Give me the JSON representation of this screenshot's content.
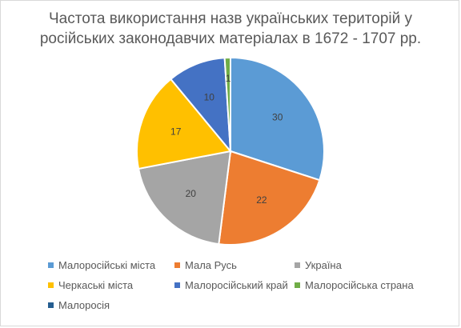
{
  "chart_data": {
    "type": "pie",
    "title_lines": [
      "Частота використання назв українських територій у",
      "російських законодавчих матеріалах в 1672 - 1707 рр."
    ],
    "slices": [
      {
        "label": "Малоросійські міста",
        "value": 30,
        "color": "#5b9bd5"
      },
      {
        "label": "Мала Русь",
        "value": 22,
        "color": "#ed7d31"
      },
      {
        "label": "Україна",
        "value": 20,
        "color": "#a5a5a5"
      },
      {
        "label": "Черкаські міста",
        "value": 17,
        "color": "#ffc000"
      },
      {
        "label": "Малоросійський край",
        "value": 10,
        "color": "#4472c4"
      },
      {
        "label": "Малоросійська страна",
        "value": 1,
        "color": "#70ad47"
      },
      {
        "label": "Малоросія",
        "value": 0,
        "color": "#255e91"
      }
    ],
    "legend_position": "bottom"
  }
}
